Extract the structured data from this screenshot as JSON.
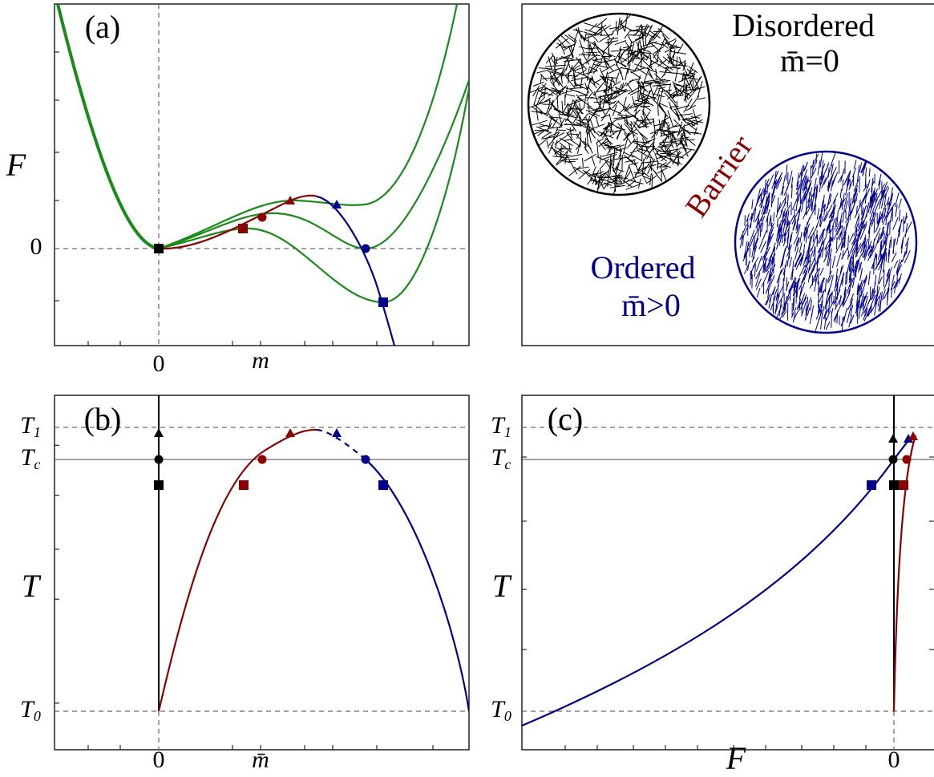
{
  "panel_a": {
    "label": "(a)",
    "y_label": "F",
    "y_tick": "0",
    "x_ticks": [
      "0",
      "m"
    ]
  },
  "panel_top_right": {
    "disordered": "Disordered",
    "disordered_value": "m̄=0",
    "barrier": "Barrier",
    "ordered": "Ordered",
    "ordered_value": "m̄>0"
  },
  "panel_b": {
    "label": "(b)",
    "y_ticks": [
      {
        "text": "T",
        "sub": "1"
      },
      {
        "text": "T",
        "sub": "c"
      },
      {
        "text": "T",
        "sub": ""
      },
      {
        "text": "T",
        "sub": "0"
      }
    ],
    "x_ticks": [
      "0",
      "m̄"
    ]
  },
  "panel_c": {
    "label": "(c)",
    "y_ticks": [
      {
        "text": "T",
        "sub": "1"
      },
      {
        "text": "T",
        "sub": "c"
      },
      {
        "text": "T",
        "sub": ""
      },
      {
        "text": "T",
        "sub": "0"
      }
    ],
    "x_ticks": [
      "F",
      "0"
    ]
  }
}
